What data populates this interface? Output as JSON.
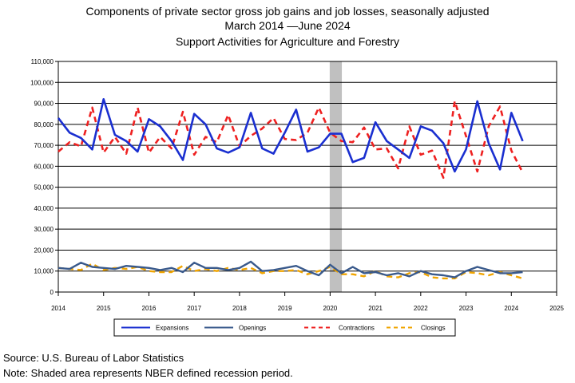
{
  "chart_data": {
    "type": "line",
    "title_lines": [
      "Components of private sector gross job gains and job losses, seasonally adjusted",
      "March 2014  —June 2024",
      "Support Activities for Agriculture and Forestry"
    ],
    "xlim": [
      2014,
      2025
    ],
    "x_ticks": [
      "2014",
      "2015",
      "2016",
      "2017",
      "2018",
      "2019",
      "2020",
      "2021",
      "2022",
      "2023",
      "2024",
      "2025"
    ],
    "ylim": [
      0,
      110000
    ],
    "y_ticks": [
      "0",
      "10,000",
      "20,000",
      "30,000",
      "40,000",
      "50,000",
      "60,000",
      "70,000",
      "80,000",
      "90,000",
      "100,000",
      "110,000"
    ],
    "recession": [
      2020.0,
      2020.25
    ],
    "x": [
      2014.0,
      2014.25,
      2014.5,
      2014.75,
      2015.0,
      2015.25,
      2015.5,
      2015.75,
      2016.0,
      2016.25,
      2016.5,
      2016.75,
      2017.0,
      2017.25,
      2017.5,
      2017.75,
      2018.0,
      2018.25,
      2018.5,
      2018.75,
      2019.0,
      2019.25,
      2019.5,
      2019.75,
      2020.0,
      2020.25,
      2020.5,
      2020.75,
      2021.0,
      2021.25,
      2021.5,
      2021.75,
      2022.0,
      2022.25,
      2022.5,
      2022.75,
      2023.0,
      2023.25,
      2023.5,
      2023.75,
      2024.0,
      2024.25
    ],
    "series": [
      {
        "name": "Expansions",
        "color": "#1a2fd0",
        "dash": "solid",
        "width": 2.6,
        "values": [
          83000,
          76000,
          73500,
          68000,
          92000,
          75000,
          72000,
          67000,
          82500,
          79000,
          72000,
          63000,
          85000,
          80000,
          68500,
          66500,
          69000,
          85500,
          68500,
          66000,
          76000,
          87000,
          67000,
          69000,
          75500,
          75500,
          62000,
          64000,
          81000,
          72000,
          68000,
          64000,
          79000,
          77000,
          71000,
          57500,
          68000,
          91000,
          71000,
          58500,
          85500,
          72000
        ]
      },
      {
        "name": "Openings",
        "color": "#3a5a8c",
        "dash": "solid",
        "width": 2.4,
        "values": [
          11500,
          11000,
          14000,
          12000,
          11500,
          11000,
          12500,
          12000,
          11500,
          10500,
          11500,
          9500,
          14000,
          11500,
          11500,
          10500,
          11500,
          14500,
          10000,
          10500,
          11500,
          12500,
          10000,
          8000,
          13000,
          9000,
          12000,
          9000,
          9500,
          8000,
          9000,
          7500,
          10000,
          8500,
          8000,
          7000,
          10000,
          12000,
          10500,
          9000,
          9000,
          9500
        ]
      },
      {
        "name": "Contractions",
        "color": "#ee2020",
        "dash": "dashed",
        "width": 2.6,
        "values": [
          67000,
          71500,
          69500,
          88000,
          66500,
          74000,
          66000,
          88000,
          66500,
          74000,
          68500,
          86000,
          65500,
          74000,
          71500,
          84500,
          69500,
          74500,
          78000,
          83000,
          73000,
          72500,
          76000,
          88000,
          76000,
          72000,
          71500,
          78500,
          68000,
          68500,
          59000,
          79000,
          65500,
          67500,
          54500,
          91000,
          74500,
          57500,
          79000,
          88500,
          67500,
          57000
        ]
      },
      {
        "name": "Closings",
        "color": "#f0a400",
        "dash": "dashed",
        "width": 2.4,
        "values": [
          11500,
          11000,
          10500,
          13500,
          10500,
          11500,
          11000,
          12000,
          10000,
          9500,
          9500,
          12500,
          10000,
          11000,
          10000,
          11500,
          10500,
          11500,
          9000,
          10000,
          10000,
          10500,
          8500,
          10000,
          12000,
          8500,
          8500,
          7500,
          10000,
          7500,
          7000,
          9000,
          9500,
          7000,
          6500,
          6500,
          9500,
          9000,
          8000,
          9500,
          8000,
          6500
        ]
      }
    ],
    "legend": [
      "Expansions",
      "Openings",
      "Contractions",
      "Closings"
    ],
    "legend_placement": "bottom",
    "grid": true
  },
  "footer": {
    "source": "Source: U.S. Bureau of Labor Statistics",
    "note": "Note: Shaded area represents NBER defined recession period."
  }
}
